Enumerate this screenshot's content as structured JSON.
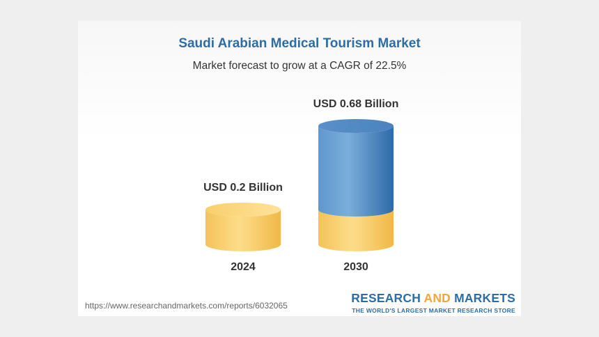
{
  "chart_data": {
    "type": "bar",
    "title": "Saudi Arabian Medical Tourism Market",
    "subtitle": "Market forecast to grow at a CAGR of 22.5%",
    "categories": [
      "2024",
      "2030"
    ],
    "values": [
      0.2,
      0.68
    ],
    "unit": "USD Billion",
    "value_labels": [
      "USD 0.2 Billion",
      "USD 0.68 Billion"
    ],
    "base_value": 0.2,
    "colors": {
      "base": "#f7c85a",
      "growth": "#3f7dbd",
      "title": "#2e6da4"
    }
  },
  "footer": {
    "source_url": "https://www.researchandmarkets.com/reports/6032065",
    "brand_part1": "RESEARCH",
    "brand_part2": "AND",
    "brand_part3": "MARKETS",
    "brand_tagline": "THE WORLD'S LARGEST MARKET RESEARCH STORE"
  }
}
